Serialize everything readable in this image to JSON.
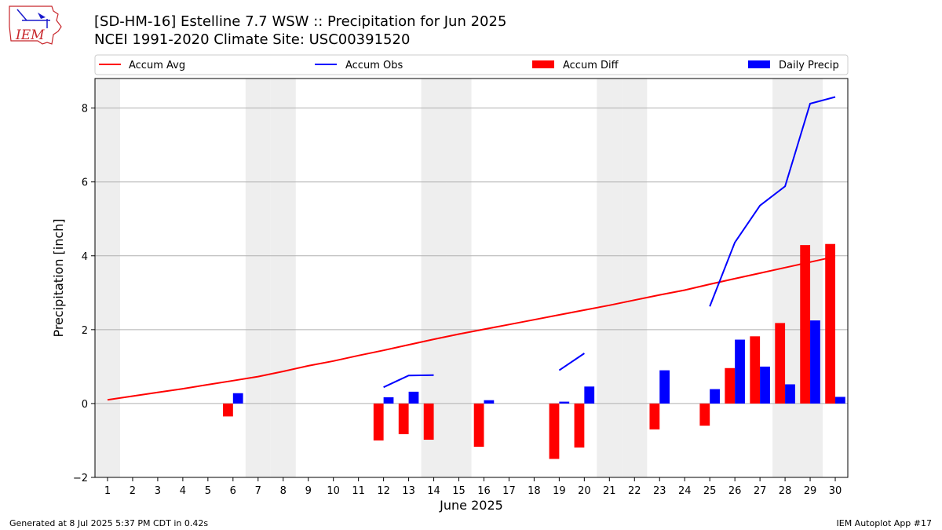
{
  "header": {
    "title_line1": "[SD-HM-16] Estelline 7.7 WSW :: Precipitation for Jun 2025",
    "title_line2": "NCEI 1991-2020 Climate Site: USC00391520",
    "logo_text": "IEM"
  },
  "footer": {
    "generated": "Generated at 8 Jul 2025 5:37 PM CDT in 0.42s",
    "app": "IEM Autoplot App #17"
  },
  "colors": {
    "avg": "#ff0000",
    "obs": "#0000ff",
    "diff": "#ff0000",
    "daily": "#0000ff",
    "weekend_shade": "#eeeeee",
    "grid": "#b0b0b0"
  },
  "chart_data": {
    "type": "bar",
    "xlabel": "June 2025",
    "ylabel": "Precipitation [inch]",
    "ylim": [
      -2,
      8.8
    ],
    "yticks": [
      -2,
      0,
      2,
      4,
      6,
      8
    ],
    "xlim": [
      0.5,
      30.5
    ],
    "x": [
      1,
      2,
      3,
      4,
      5,
      6,
      7,
      8,
      9,
      10,
      11,
      12,
      13,
      14,
      15,
      16,
      17,
      18,
      19,
      20,
      21,
      22,
      23,
      24,
      25,
      26,
      27,
      28,
      29,
      30
    ],
    "grid": "horizontal",
    "legend": {
      "placement": "top",
      "entries": [
        "Accum Avg",
        "Accum Obs",
        "Accum Diff",
        "Daily Precip"
      ]
    },
    "weekend_days": [
      1,
      7,
      8,
      14,
      15,
      21,
      22,
      28,
      29
    ],
    "series": [
      {
        "name": "Accum Avg",
        "kind": "line",
        "values": [
          0.1,
          0.2,
          0.3,
          0.4,
          0.51,
          0.62,
          0.73,
          0.87,
          1.02,
          1.15,
          1.3,
          1.44,
          1.59,
          1.74,
          1.88,
          2.01,
          2.14,
          2.27,
          2.4,
          2.53,
          2.66,
          2.8,
          2.94,
          3.07,
          3.23,
          3.38,
          3.53,
          3.68,
          3.83,
          3.98
        ]
      },
      {
        "name": "Accum Obs",
        "kind": "line",
        "values": [
          null,
          null,
          null,
          null,
          null,
          null,
          null,
          null,
          null,
          null,
          null,
          0.44,
          0.76,
          0.77,
          null,
          null,
          null,
          null,
          0.9,
          1.36,
          null,
          null,
          null,
          null,
          2.63,
          4.36,
          5.36,
          5.88,
          8.12,
          8.3
        ]
      },
      {
        "name": "Accum Diff",
        "kind": "bar",
        "values": [
          null,
          null,
          null,
          null,
          null,
          -0.35,
          null,
          null,
          null,
          null,
          null,
          -1.0,
          -0.83,
          -0.98,
          null,
          -1.17,
          null,
          null,
          -1.5,
          -1.19,
          null,
          null,
          -0.7,
          null,
          -0.6,
          0.96,
          1.82,
          2.18,
          4.29,
          4.32
        ]
      },
      {
        "name": "Daily Precip",
        "kind": "bar",
        "values": [
          null,
          null,
          null,
          null,
          null,
          0.28,
          null,
          null,
          null,
          null,
          null,
          0.17,
          0.32,
          null,
          null,
          0.09,
          null,
          null,
          0.05,
          0.46,
          null,
          null,
          0.9,
          null,
          0.39,
          1.73,
          1.0,
          0.52,
          2.25,
          0.18
        ]
      }
    ]
  }
}
